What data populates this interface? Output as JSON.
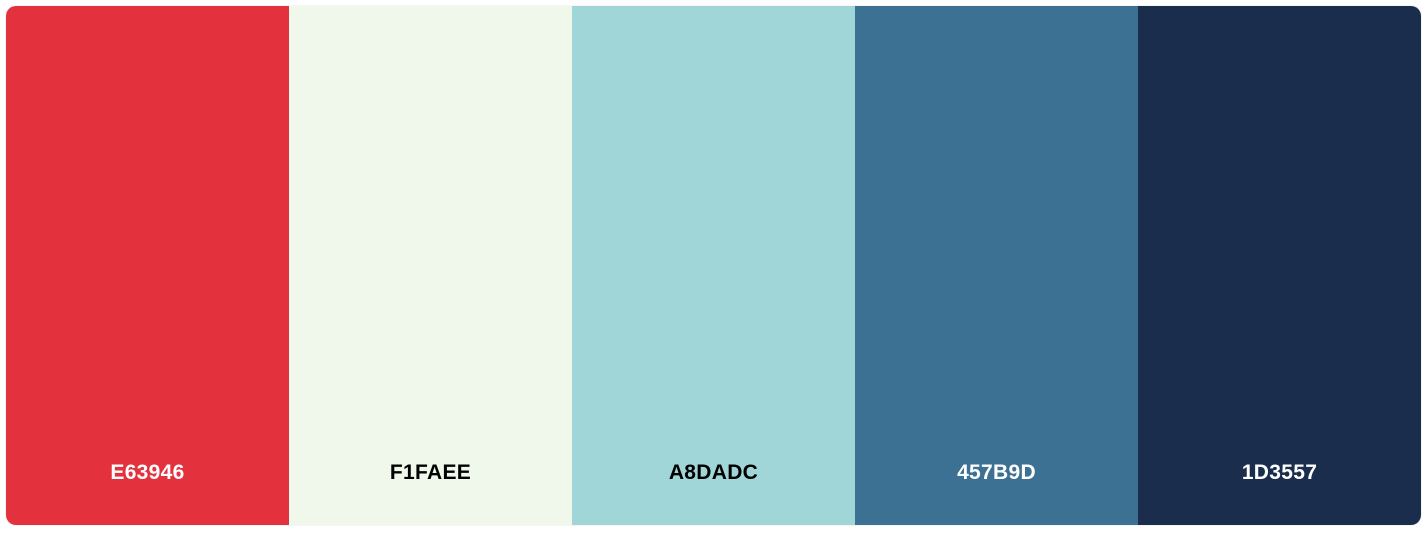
{
  "palette": {
    "swatches": [
      {
        "hex": "E63946",
        "color": "#E3323D",
        "text_color": "#FFFFFF"
      },
      {
        "hex": "F1FAEE",
        "color": "#EFF8EB",
        "text_color": "#000000"
      },
      {
        "hex": "A8DADC",
        "color": "#A0D6D8",
        "text_color": "#000000"
      },
      {
        "hex": "457B9D",
        "color": "#3C7194",
        "text_color": "#FFFFFF"
      },
      {
        "hex": "1D3557",
        "color": "#1B2D4D",
        "text_color": "#FFFFFF"
      }
    ]
  }
}
